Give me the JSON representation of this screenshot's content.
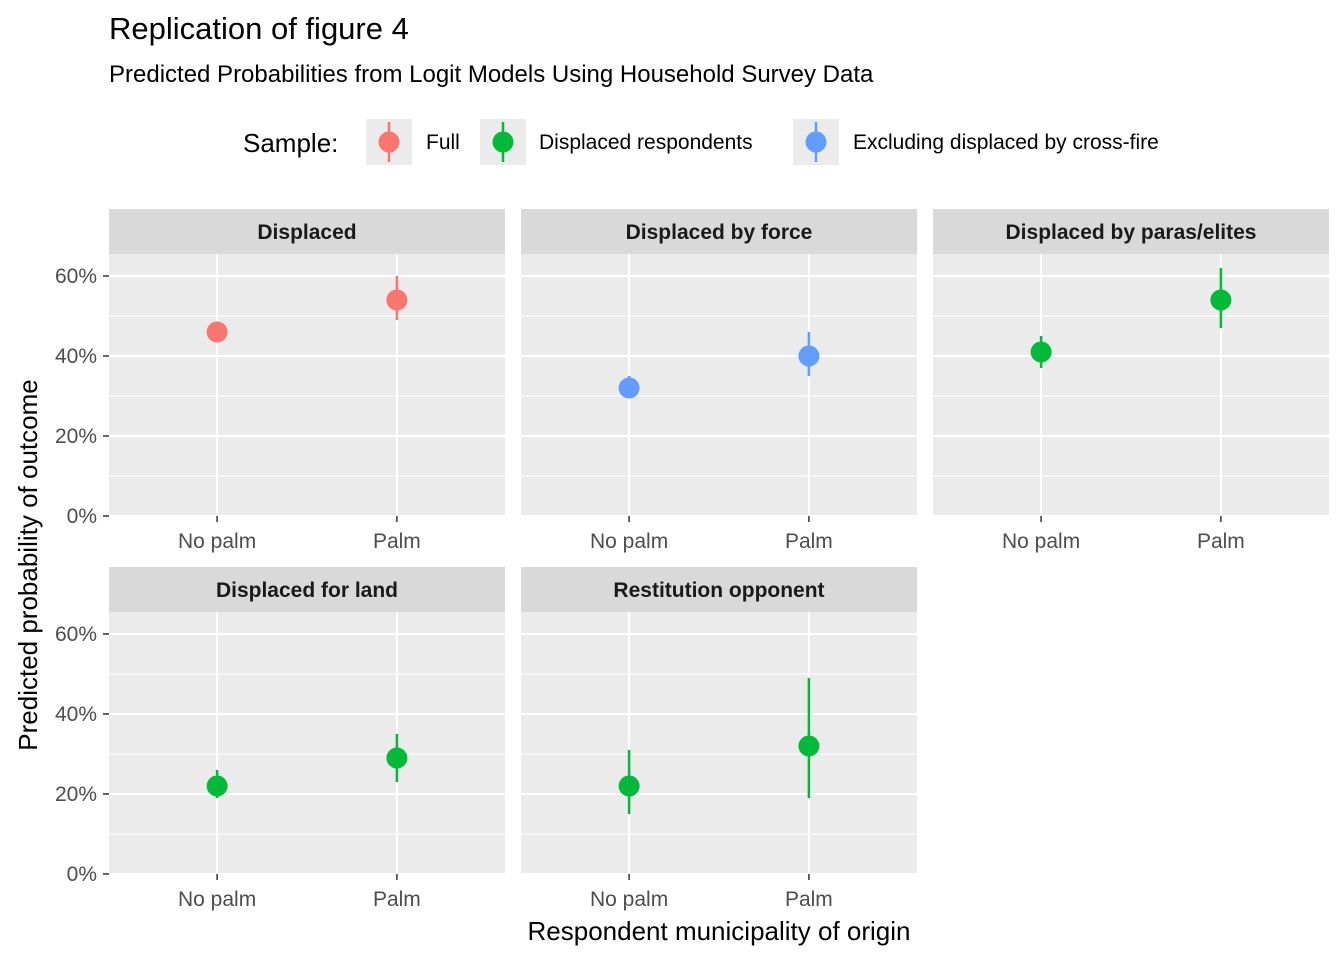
{
  "title": "Replication of figure 4",
  "subtitle": "Predicted Probabilities from Logit Models Using Household Survey Data",
  "legend": {
    "title": "Sample:",
    "items": [
      {
        "label": "Full",
        "color": "#F8766D"
      },
      {
        "label": "Displaced respondents",
        "color": "#00BA38"
      },
      {
        "label": "Excluding displaced by cross-fire",
        "color": "#619CFF"
      }
    ]
  },
  "axes": {
    "xlabel": "Respondent municipality of origin",
    "ylabel": "Predicted probability of outcome"
  },
  "chart_data": {
    "type": "scatter",
    "geom": "pointrange",
    "facets": [
      "Displaced",
      "Displaced by force",
      "Displaced by paras/elites",
      "Displaced for land",
      "Restitution opponent"
    ],
    "categories": [
      "No palm",
      "Palm"
    ],
    "y_ticks": [
      "0%",
      "20%",
      "40%",
      "60%"
    ],
    "ylim": [
      0,
      0.6
    ],
    "grid": true,
    "legend_position": "top",
    "panels": [
      {
        "facet": "Displaced",
        "sample": "Full",
        "color": "#F8766D",
        "points": [
          {
            "x": "No palm",
            "y": 0.46,
            "lower": 0.45,
            "upper": 0.47
          },
          {
            "x": "Palm",
            "y": 0.54,
            "lower": 0.49,
            "upper": 0.6
          }
        ]
      },
      {
        "facet": "Displaced by force",
        "sample": "Excluding displaced by cross-fire",
        "color": "#619CFF",
        "points": [
          {
            "x": "No palm",
            "y": 0.32,
            "lower": 0.31,
            "upper": 0.35
          },
          {
            "x": "Palm",
            "y": 0.4,
            "lower": 0.35,
            "upper": 0.46
          }
        ]
      },
      {
        "facet": "Displaced by paras/elites",
        "sample": "Displaced respondents",
        "color": "#00BA38",
        "points": [
          {
            "x": "No palm",
            "y": 0.41,
            "lower": 0.37,
            "upper": 0.45
          },
          {
            "x": "Palm",
            "y": 0.54,
            "lower": 0.47,
            "upper": 0.62
          }
        ]
      },
      {
        "facet": "Displaced for land",
        "sample": "Displaced respondents",
        "color": "#00BA38",
        "points": [
          {
            "x": "No palm",
            "y": 0.22,
            "lower": 0.19,
            "upper": 0.26
          },
          {
            "x": "Palm",
            "y": 0.29,
            "lower": 0.23,
            "upper": 0.35
          }
        ]
      },
      {
        "facet": "Restitution opponent",
        "sample": "Displaced respondents",
        "color": "#00BA38",
        "points": [
          {
            "x": "No palm",
            "y": 0.22,
            "lower": 0.15,
            "upper": 0.31
          },
          {
            "x": "Palm",
            "y": 0.32,
            "lower": 0.19,
            "upper": 0.49
          }
        ]
      }
    ]
  }
}
